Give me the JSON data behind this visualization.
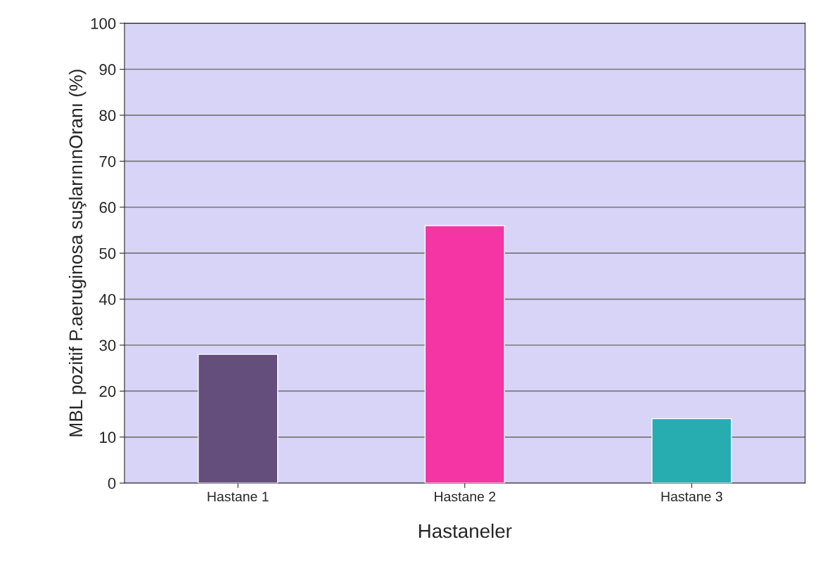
{
  "chart_data": {
    "type": "bar",
    "xlabel": "Hastaneler",
    "ylabel": "MBL pozitif P.aeruginosa suşlarınınOranı (%)",
    "categories": [
      "Hastane 1",
      "Hastane 2",
      "Hastane 3"
    ],
    "values": [
      28,
      56,
      14
    ],
    "colors": [
      "#634e7c",
      "#f535a4",
      "#27acb0"
    ],
    "ylim": [
      0,
      100
    ],
    "yticks": [
      0,
      10,
      20,
      30,
      40,
      50,
      60,
      70,
      80,
      90,
      100
    ],
    "grid": "y"
  }
}
